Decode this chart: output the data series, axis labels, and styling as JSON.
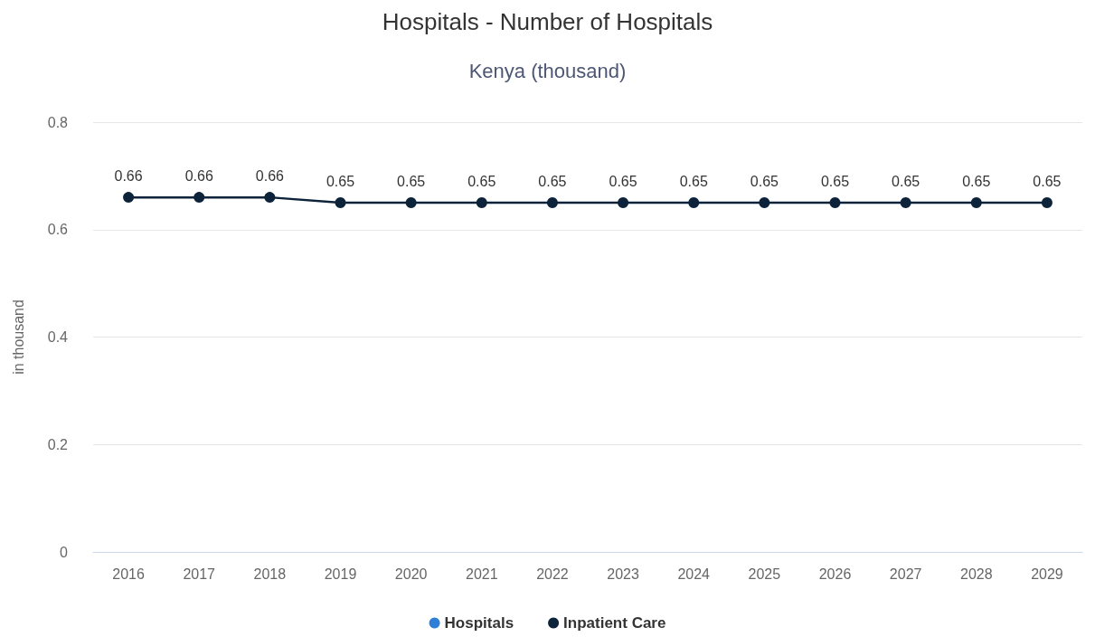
{
  "chart_data": {
    "type": "line",
    "title": "Hospitals - Number of Hospitals",
    "subtitle": "Kenya (thousand)",
    "ylabel": "in thousand",
    "categories": [
      "2016",
      "2017",
      "2018",
      "2019",
      "2020",
      "2021",
      "2022",
      "2023",
      "2024",
      "2025",
      "2026",
      "2027",
      "2028",
      "2029"
    ],
    "series": [
      {
        "name": "Hospitals",
        "color": "#2f7ed8",
        "values": [
          null,
          null,
          null,
          null,
          null,
          null,
          null,
          null,
          null,
          null,
          null,
          null,
          null,
          null
        ]
      },
      {
        "name": "Inpatient Care",
        "color": "#0d233a",
        "values": [
          0.66,
          0.66,
          0.66,
          0.65,
          0.65,
          0.65,
          0.65,
          0.65,
          0.65,
          0.65,
          0.65,
          0.65,
          0.65,
          0.65
        ]
      }
    ],
    "ylim": [
      0,
      0.8
    ],
    "yticks": [
      0,
      0.2,
      0.4,
      0.6,
      0.8
    ],
    "grid": "y",
    "legend": "bottom",
    "marker": "circle",
    "line_style": "solid",
    "data_labels": true
  }
}
